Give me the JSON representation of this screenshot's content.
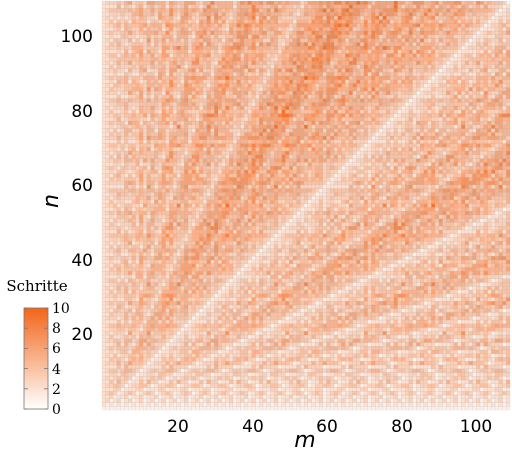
{
  "chart_data": {
    "type": "heatmap",
    "value_rule": "steps of the Euclidean algorithm for gcd(m, n)",
    "x": {
      "label": "m",
      "min": 1,
      "max": 109,
      "ticks": [
        20,
        40,
        60,
        80,
        100
      ]
    },
    "y": {
      "label": "n",
      "min": 1,
      "max": 109,
      "ticks": [
        20,
        40,
        60,
        80,
        100
      ]
    },
    "colorbar": {
      "title": "Schritte",
      "min": 0,
      "max": 10,
      "ticks": [
        0,
        2,
        4,
        6,
        8,
        10
      ],
      "low_color": "#ffffff",
      "high_color": "#f2651a"
    },
    "grid": true,
    "legend_position": "bottom-left"
  },
  "tick_labels": {
    "x": [
      "20",
      "40",
      "60",
      "80",
      "100"
    ],
    "y": [
      "20",
      "40",
      "60",
      "80",
      "100"
    ],
    "colorbar": [
      "0",
      "2",
      "4",
      "6",
      "8",
      "10"
    ]
  },
  "labels": {
    "xlabel": "m",
    "ylabel": "n",
    "colorbar_title": "Schritte"
  }
}
